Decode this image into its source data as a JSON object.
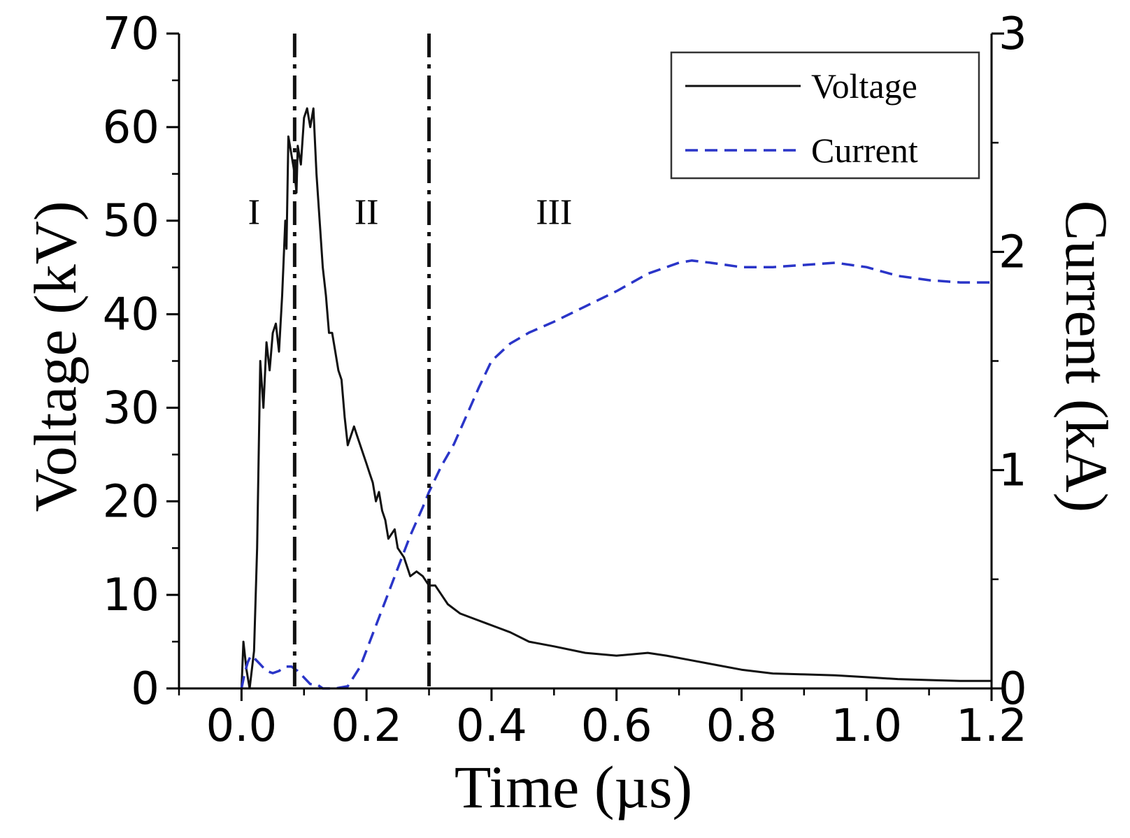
{
  "chart_data": {
    "type": "line",
    "xlabel": "Time (µs)",
    "ylabel_left": "Voltage (kV)",
    "ylabel_right": "Current (kA)",
    "xlim": [
      -0.1,
      1.2
    ],
    "ylim_left": [
      0,
      70
    ],
    "ylim_right": [
      0,
      3
    ],
    "x_ticks": [
      {
        "value": 0.0,
        "label": "0.0"
      },
      {
        "value": 0.2,
        "label": "0.2"
      },
      {
        "value": 0.4,
        "label": "0.4"
      },
      {
        "value": 0.6,
        "label": "0.6"
      },
      {
        "value": 0.8,
        "label": "0.8"
      },
      {
        "value": 1.0,
        "label": "1.0"
      },
      {
        "value": 1.2,
        "label": "1.2"
      }
    ],
    "y_left_ticks": [
      {
        "value": 0,
        "label": "0"
      },
      {
        "value": 10,
        "label": "10"
      },
      {
        "value": 20,
        "label": "20"
      },
      {
        "value": 30,
        "label": "30"
      },
      {
        "value": 40,
        "label": "40"
      },
      {
        "value": 50,
        "label": "50"
      },
      {
        "value": 60,
        "label": "60"
      },
      {
        "value": 70,
        "label": "70"
      }
    ],
    "y_right_ticks": [
      {
        "value": 0,
        "label": "0"
      },
      {
        "value": 1,
        "label": "1"
      },
      {
        "value": 2,
        "label": "2"
      },
      {
        "value": 3,
        "label": "3"
      }
    ],
    "region_dividers": [
      0.085,
      0.3
    ],
    "region_labels": [
      {
        "label": "I",
        "x": 0.02,
        "y": 51
      },
      {
        "label": "II",
        "x": 0.2,
        "y": 51
      },
      {
        "label": "III",
        "x": 0.5,
        "y": 51
      }
    ],
    "legend": {
      "position": "top-right",
      "entries": [
        {
          "label": "Voltage",
          "series": "voltage"
        },
        {
          "label": "Current",
          "series": "current"
        }
      ]
    },
    "series": [
      {
        "name": "Voltage",
        "axis": "left",
        "color": "#111111",
        "style": "solid",
        "points": [
          [
            0.0,
            0
          ],
          [
            0.003,
            5
          ],
          [
            0.008,
            2
          ],
          [
            0.013,
            0
          ],
          [
            0.02,
            4
          ],
          [
            0.025,
            15
          ],
          [
            0.03,
            35
          ],
          [
            0.035,
            30
          ],
          [
            0.04,
            37
          ],
          [
            0.045,
            34
          ],
          [
            0.05,
            38
          ],
          [
            0.055,
            39
          ],
          [
            0.06,
            36
          ],
          [
            0.065,
            42
          ],
          [
            0.07,
            50
          ],
          [
            0.072,
            47
          ],
          [
            0.075,
            59
          ],
          [
            0.08,
            57
          ],
          [
            0.085,
            55
          ],
          [
            0.088,
            53
          ],
          [
            0.09,
            58
          ],
          [
            0.095,
            56
          ],
          [
            0.1,
            61
          ],
          [
            0.105,
            62
          ],
          [
            0.11,
            60
          ],
          [
            0.115,
            62
          ],
          [
            0.12,
            55
          ],
          [
            0.125,
            50
          ],
          [
            0.13,
            45
          ],
          [
            0.135,
            42
          ],
          [
            0.14,
            38
          ],
          [
            0.145,
            38
          ],
          [
            0.15,
            36
          ],
          [
            0.155,
            34
          ],
          [
            0.16,
            33
          ],
          [
            0.165,
            29
          ],
          [
            0.17,
            26
          ],
          [
            0.175,
            27
          ],
          [
            0.18,
            28
          ],
          [
            0.185,
            27
          ],
          [
            0.19,
            26
          ],
          [
            0.195,
            25
          ],
          [
            0.2,
            24
          ],
          [
            0.205,
            23
          ],
          [
            0.21,
            22
          ],
          [
            0.215,
            20
          ],
          [
            0.22,
            21
          ],
          [
            0.225,
            19
          ],
          [
            0.23,
            18
          ],
          [
            0.235,
            16
          ],
          [
            0.24,
            16.5
          ],
          [
            0.245,
            17
          ],
          [
            0.25,
            15
          ],
          [
            0.26,
            14
          ],
          [
            0.27,
            12
          ],
          [
            0.28,
            12.5
          ],
          [
            0.29,
            12
          ],
          [
            0.3,
            11
          ],
          [
            0.31,
            11
          ],
          [
            0.32,
            10
          ],
          [
            0.33,
            9
          ],
          [
            0.35,
            8
          ],
          [
            0.37,
            7.5
          ],
          [
            0.39,
            7
          ],
          [
            0.41,
            6.5
          ],
          [
            0.43,
            6
          ],
          [
            0.46,
            5
          ],
          [
            0.5,
            4.5
          ],
          [
            0.55,
            3.8
          ],
          [
            0.6,
            3.5
          ],
          [
            0.65,
            3.8
          ],
          [
            0.68,
            3.5
          ],
          [
            0.72,
            3
          ],
          [
            0.76,
            2.5
          ],
          [
            0.8,
            2
          ],
          [
            0.85,
            1.6
          ],
          [
            0.9,
            1.5
          ],
          [
            0.95,
            1.4
          ],
          [
            1.0,
            1.2
          ],
          [
            1.05,
            1.0
          ],
          [
            1.1,
            0.9
          ],
          [
            1.15,
            0.8
          ],
          [
            1.2,
            0.8
          ]
        ]
      },
      {
        "name": "Current",
        "axis": "right",
        "color": "#2a35c8",
        "style": "dashed",
        "points": [
          [
            0.0,
            0
          ],
          [
            0.005,
            0.07
          ],
          [
            0.01,
            0.12
          ],
          [
            0.015,
            0.15
          ],
          [
            0.02,
            0.14
          ],
          [
            0.03,
            0.11
          ],
          [
            0.04,
            0.08
          ],
          [
            0.05,
            0.07
          ],
          [
            0.06,
            0.08
          ],
          [
            0.07,
            0.1
          ],
          [
            0.08,
            0.1
          ],
          [
            0.09,
            0.08
          ],
          [
            0.1,
            0.05
          ],
          [
            0.11,
            0.02
          ],
          [
            0.12,
            0.02
          ],
          [
            0.13,
            0.0
          ],
          [
            0.15,
            0.0
          ],
          [
            0.17,
            0.01
          ],
          [
            0.19,
            0.1
          ],
          [
            0.21,
            0.25
          ],
          [
            0.23,
            0.4
          ],
          [
            0.25,
            0.55
          ],
          [
            0.27,
            0.7
          ],
          [
            0.29,
            0.83
          ],
          [
            0.3,
            0.9
          ],
          [
            0.32,
            1.02
          ],
          [
            0.34,
            1.12
          ],
          [
            0.36,
            1.25
          ],
          [
            0.38,
            1.38
          ],
          [
            0.4,
            1.5
          ],
          [
            0.43,
            1.58
          ],
          [
            0.46,
            1.63
          ],
          [
            0.5,
            1.68
          ],
          [
            0.55,
            1.75
          ],
          [
            0.6,
            1.82
          ],
          [
            0.65,
            1.9
          ],
          [
            0.7,
            1.95
          ],
          [
            0.72,
            1.96
          ],
          [
            0.75,
            1.95
          ],
          [
            0.8,
            1.93
          ],
          [
            0.85,
            1.93
          ],
          [
            0.9,
            1.94
          ],
          [
            0.95,
            1.95
          ],
          [
            1.0,
            1.93
          ],
          [
            1.05,
            1.89
          ],
          [
            1.1,
            1.87
          ],
          [
            1.15,
            1.86
          ],
          [
            1.2,
            1.86
          ]
        ]
      }
    ]
  }
}
